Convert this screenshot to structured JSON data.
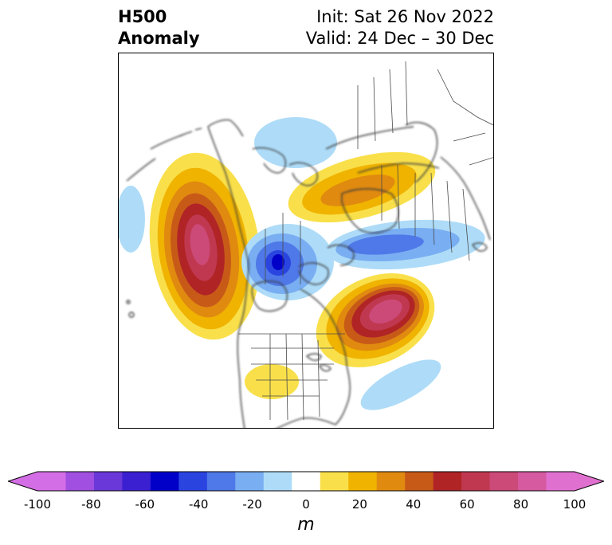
{
  "title": {
    "left_line1": "H500",
    "left_line2": "Anomaly",
    "init": "Init: Sat 26 Nov 2022",
    "valid": "Valid: 24 Dec – 30 Dec"
  },
  "colorbar": {
    "unit": "m",
    "tick_labels": [
      "-100",
      "-80",
      "-60",
      "-40",
      "-20",
      "0",
      "20",
      "40",
      "60",
      "80",
      "100"
    ],
    "extend": "both",
    "bins": [
      {
        "range": "-100 to -90",
        "color": "#d46ee6"
      },
      {
        "range": "-90 to -80",
        "color": "#a04fe0"
      },
      {
        "range": "-80 to -70",
        "color": "#6a38d8"
      },
      {
        "range": "-70 to -60",
        "color": "#3a20d0"
      },
      {
        "range": "-60 to -50",
        "color": "#0000c8"
      },
      {
        "range": "-50 to -40",
        "color": "#2a44e0"
      },
      {
        "range": "-40 to -30",
        "color": "#4f79e8"
      },
      {
        "range": "-30 to -20",
        "color": "#79aef2"
      },
      {
        "range": "-20 to -10",
        "color": "#aedcf8"
      },
      {
        "range": "-10 to 10",
        "color": "#ffffff"
      },
      {
        "range": "10 to 20",
        "color": "#f9e04a"
      },
      {
        "range": "20 to 30",
        "color": "#f0b300"
      },
      {
        "range": "30 to 40",
        "color": "#e08a10"
      },
      {
        "range": "40 to 50",
        "color": "#c85a18"
      },
      {
        "range": "50 to 60",
        "color": "#b02426"
      },
      {
        "range": "60 to 70",
        "color": "#c03850"
      },
      {
        "range": "70 to 80",
        "color": "#cc4a78"
      },
      {
        "range": "80 to 90",
        "color": "#d65aa0"
      },
      {
        "range": "90 to 100",
        "color": "#e070d0"
      }
    ],
    "under_color": "#d46ee6",
    "over_color": "#e070d0"
  },
  "map": {
    "projection": "north-polar-stereographic",
    "features": [
      "coastlines",
      "country-borders",
      "state-province-borders"
    ]
  }
}
